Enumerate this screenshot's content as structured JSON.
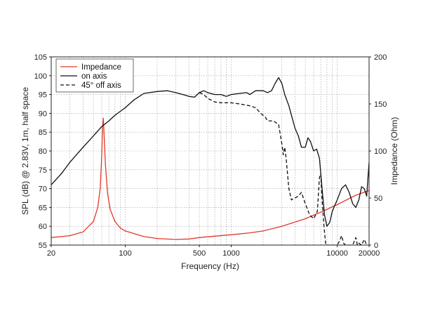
{
  "chart_data": {
    "type": "line",
    "xlabel": "Frequency (Hz)",
    "ylabel_left": "SPL (dB) @ 2.83V, 1m, half space",
    "ylabel_right": "Impedance (Ohm)",
    "x_scale": "log",
    "xlim": [
      20,
      20000
    ],
    "ylim_left": [
      55,
      105
    ],
    "ylim_right": [
      0,
      200
    ],
    "grid": true,
    "legend_position": "top-left",
    "x_tick_labels": [
      {
        "value": 20,
        "label": "20"
      },
      {
        "value": 100,
        "label": "100"
      },
      {
        "value": 500,
        "label": "500"
      },
      {
        "value": 1000,
        "label": "1000"
      },
      {
        "value": 10000,
        "label": "10000"
      },
      {
        "value": 20000,
        "label": "20000"
      }
    ],
    "y_left_ticks": [
      "55",
      "60",
      "65",
      "70",
      "75",
      "80",
      "85",
      "90",
      "95",
      "100",
      "105"
    ],
    "y_right_ticks": [
      "0",
      "50",
      "100",
      "150",
      "200"
    ],
    "series": [
      {
        "name": "Impedance",
        "axis": "right",
        "color": "#e0382b",
        "style": "solid",
        "points": [
          [
            20,
            8
          ],
          [
            30,
            10
          ],
          [
            40,
            14
          ],
          [
            50,
            25
          ],
          [
            55,
            40
          ],
          [
            58,
            60
          ],
          [
            60,
            95
          ],
          [
            61,
            125
          ],
          [
            62,
            135
          ],
          [
            63,
            120
          ],
          [
            65,
            85
          ],
          [
            68,
            55
          ],
          [
            72,
            38
          ],
          [
            80,
            25
          ],
          [
            90,
            18
          ],
          [
            100,
            15
          ],
          [
            150,
            9
          ],
          [
            200,
            7
          ],
          [
            300,
            6
          ],
          [
            400,
            6.5
          ],
          [
            500,
            8
          ],
          [
            700,
            9.5
          ],
          [
            1000,
            11
          ],
          [
            1500,
            13
          ],
          [
            2000,
            15
          ],
          [
            3000,
            20
          ],
          [
            5000,
            28
          ],
          [
            7000,
            35
          ],
          [
            10000,
            43
          ],
          [
            15000,
            53
          ],
          [
            20000,
            58
          ]
        ]
      },
      {
        "name": "on axis",
        "axis": "left",
        "color": "#111111",
        "style": "solid",
        "points": [
          [
            20,
            71
          ],
          [
            25,
            74
          ],
          [
            30,
            77
          ],
          [
            40,
            81
          ],
          [
            50,
            84
          ],
          [
            60,
            86.5
          ],
          [
            70,
            88
          ],
          [
            80,
            89.5
          ],
          [
            100,
            91.5
          ],
          [
            120,
            93.5
          ],
          [
            150,
            95.3
          ],
          [
            200,
            95.8
          ],
          [
            250,
            96
          ],
          [
            300,
            95.5
          ],
          [
            350,
            95
          ],
          [
            400,
            94.5
          ],
          [
            450,
            94.3
          ],
          [
            500,
            95.5
          ],
          [
            550,
            96
          ],
          [
            600,
            95.5
          ],
          [
            700,
            95
          ],
          [
            800,
            95
          ],
          [
            900,
            94.5
          ],
          [
            1000,
            95
          ],
          [
            1200,
            95.3
          ],
          [
            1400,
            95.5
          ],
          [
            1500,
            95
          ],
          [
            1700,
            96
          ],
          [
            2000,
            96
          ],
          [
            2200,
            95.5
          ],
          [
            2400,
            96
          ],
          [
            2600,
            98
          ],
          [
            2800,
            99.5
          ],
          [
            3000,
            98
          ],
          [
            3200,
            95
          ],
          [
            3500,
            92
          ],
          [
            4000,
            86
          ],
          [
            4300,
            84
          ],
          [
            4600,
            81
          ],
          [
            5000,
            81
          ],
          [
            5300,
            83.5
          ],
          [
            5600,
            82.5
          ],
          [
            6000,
            80
          ],
          [
            6400,
            80.5
          ],
          [
            6800,
            78
          ],
          [
            7200,
            70
          ],
          [
            7600,
            63
          ],
          [
            8000,
            60
          ],
          [
            8500,
            61
          ],
          [
            9000,
            64
          ],
          [
            10000,
            67
          ],
          [
            11000,
            70
          ],
          [
            12000,
            71
          ],
          [
            13000,
            69
          ],
          [
            14000,
            66
          ],
          [
            15000,
            65
          ],
          [
            16000,
            67
          ],
          [
            17000,
            70.5
          ],
          [
            18000,
            70
          ],
          [
            19000,
            68
          ],
          [
            20000,
            77
          ]
        ]
      },
      {
        "name": "45° off axis",
        "axis": "left",
        "color": "#111111",
        "style": "dashed",
        "points": [
          [
            500,
            95.5
          ],
          [
            550,
            95
          ],
          [
            600,
            94
          ],
          [
            700,
            93
          ],
          [
            800,
            92.8
          ],
          [
            1000,
            92.8
          ],
          [
            1200,
            92.5
          ],
          [
            1500,
            92
          ],
          [
            1700,
            91.5
          ],
          [
            1900,
            90
          ],
          [
            2100,
            89
          ],
          [
            2200,
            88
          ],
          [
            2500,
            88
          ],
          [
            2800,
            87
          ],
          [
            3000,
            82
          ],
          [
            3100,
            79
          ],
          [
            3200,
            81
          ],
          [
            3300,
            78
          ],
          [
            3500,
            70
          ],
          [
            3700,
            67
          ],
          [
            4000,
            67.5
          ],
          [
            4300,
            68
          ],
          [
            4600,
            69
          ],
          [
            5000,
            66
          ],
          [
            5500,
            63
          ],
          [
            6000,
            62
          ],
          [
            6500,
            64
          ],
          [
            6800,
            73
          ],
          [
            7000,
            74
          ],
          [
            7200,
            67
          ],
          [
            7500,
            60
          ],
          [
            7800,
            55
          ],
          [
            10000,
            55
          ],
          [
            10500,
            56
          ],
          [
            11000,
            57.5
          ],
          [
            11500,
            55.5
          ],
          [
            12000,
            55
          ],
          [
            14000,
            55
          ],
          [
            15000,
            57
          ],
          [
            15500,
            55
          ],
          [
            16000,
            55.5
          ],
          [
            17000,
            55
          ],
          [
            18000,
            56.5
          ],
          [
            19000,
            55
          ]
        ]
      }
    ]
  }
}
